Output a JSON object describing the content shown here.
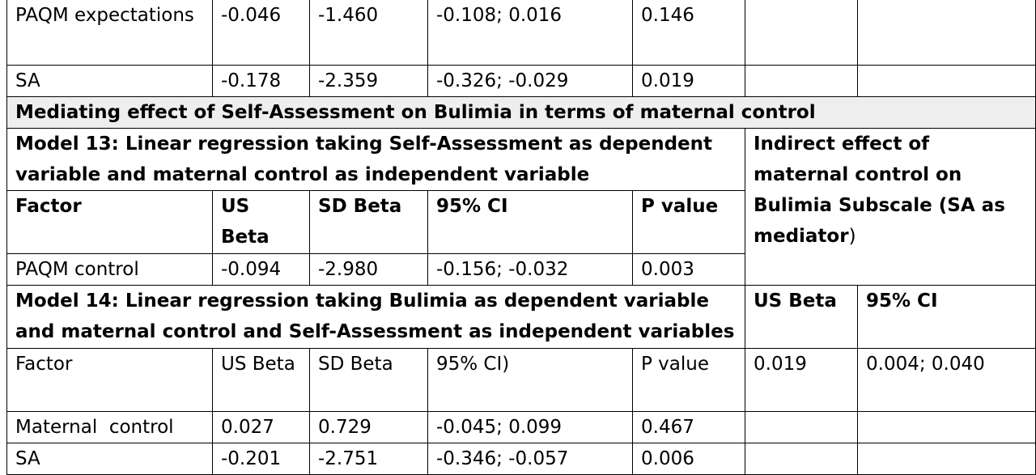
{
  "rows_top": [
    {
      "factor": "PAQM expectations",
      "us_beta": "-0.046",
      "sd_beta": "-1.460",
      "ci": "-0.108; 0.016",
      "p": "0.146"
    },
    {
      "factor": "SA",
      "us_beta": "-0.178",
      "sd_beta": "-2.359",
      "ci": "-0.326; -0.029",
      "p": "0.019"
    }
  ],
  "section_heading": "Mediating effect of Self-Assessment on Bulimia in terms of maternal control",
  "model13": {
    "title": "Model 13: Linear regression taking Self-Assessment as dependent variable and maternal control as independent variable",
    "headers": {
      "factor": "Factor",
      "us_beta": "US Beta",
      "sd_beta": "SD Beta",
      "ci": "95% CI",
      "p": "P value"
    },
    "row": {
      "factor": "PAQM control",
      "us_beta": "-0.094",
      "sd_beta": "-2.980",
      "ci": "-0.156; -0.032",
      "p": "0.003"
    }
  },
  "indirect": {
    "title": "Indirect effect of maternal control on Bulimia Subscale (SA as mediator",
    "title_suffix": ")",
    "headers": {
      "us_beta": "US Beta",
      "ci": "95% CI"
    },
    "values": {
      "us_beta": "0.019",
      "ci": "0.004; 0.040"
    }
  },
  "model14": {
    "title": "Model 14: Linear regression taking Bulimia as dependent variable and maternal control and Self-Assessment as independent variables",
    "headers": {
      "factor": "Factor",
      "us_beta": "US Beta",
      "sd_beta": "SD Beta",
      "ci": "95% CI)",
      "p": "P value"
    },
    "rows": [
      {
        "factor": "Maternal  control",
        "us_beta": "0.027",
        "sd_beta": "0.729",
        "ci": "-0.045; 0.099",
        "p": "0.467"
      },
      {
        "factor": "SA",
        "us_beta": "-0.201",
        "sd_beta": "-2.751",
        "ci": "-0.346; -0.057",
        "p": "0.006"
      }
    ]
  }
}
